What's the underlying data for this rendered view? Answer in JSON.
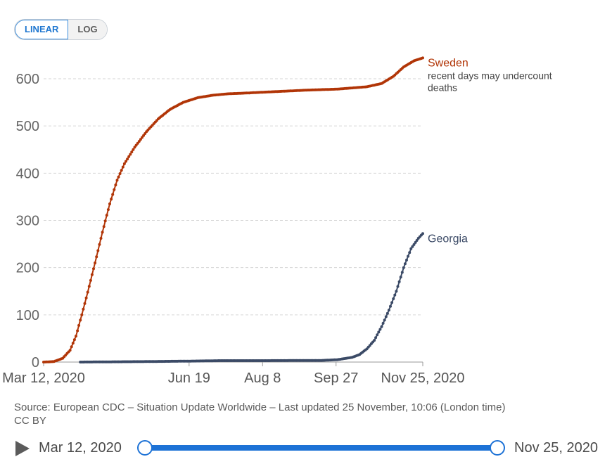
{
  "controls": {
    "linear_label": "LINEAR",
    "log_label": "LOG"
  },
  "chart_data": {
    "type": "line",
    "title": "",
    "xlabel": "",
    "ylabel": "",
    "ylim": [
      0,
      650
    ],
    "yticks": [
      0,
      100,
      200,
      300,
      400,
      500,
      600
    ],
    "grid": true,
    "x_start_day": 0,
    "x_end_day": 258,
    "xtick_labels": [
      {
        "day": 0,
        "label": "Mar 12, 2020"
      },
      {
        "day": 99,
        "label": "Jun 19"
      },
      {
        "day": 149,
        "label": "Aug 8"
      },
      {
        "day": 199,
        "label": "Sep 27"
      },
      {
        "day": 258,
        "label": "Nov 25, 2020"
      }
    ],
    "series": [
      {
        "name": "Sweden",
        "color": "#b13507",
        "label": "Sweden",
        "note": "recent days may undercount deaths",
        "points": [
          [
            0,
            0
          ],
          [
            7,
            1
          ],
          [
            13,
            8
          ],
          [
            18,
            25
          ],
          [
            22,
            55
          ],
          [
            26,
            100
          ],
          [
            30,
            148
          ],
          [
            35,
            210
          ],
          [
            40,
            275
          ],
          [
            45,
            335
          ],
          [
            50,
            385
          ],
          [
            55,
            420
          ],
          [
            62,
            455
          ],
          [
            70,
            488
          ],
          [
            78,
            515
          ],
          [
            86,
            535
          ],
          [
            95,
            550
          ],
          [
            105,
            560
          ],
          [
            115,
            565
          ],
          [
            125,
            568
          ],
          [
            140,
            570
          ],
          [
            160,
            573
          ],
          [
            180,
            576
          ],
          [
            200,
            578
          ],
          [
            220,
            583
          ],
          [
            230,
            590
          ],
          [
            238,
            605
          ],
          [
            245,
            625
          ],
          [
            252,
            638
          ],
          [
            258,
            644
          ]
        ]
      },
      {
        "name": "Georgia",
        "color": "#3b4a66",
        "label": "Georgia",
        "points": [
          [
            25,
            0
          ],
          [
            45,
            0.5
          ],
          [
            70,
            1
          ],
          [
            100,
            2
          ],
          [
            120,
            3
          ],
          [
            150,
            3
          ],
          [
            190,
            3.5
          ],
          [
            200,
            5
          ],
          [
            210,
            10
          ],
          [
            215,
            16
          ],
          [
            220,
            28
          ],
          [
            225,
            46
          ],
          [
            230,
            75
          ],
          [
            235,
            110
          ],
          [
            240,
            150
          ],
          [
            245,
            200
          ],
          [
            250,
            240
          ],
          [
            255,
            262
          ],
          [
            258,
            272
          ]
        ]
      }
    ]
  },
  "source": {
    "line1": "Source: European CDC – Situation Update Worldwide – Last updated 25 November, 10:06 (London time)",
    "line2": "CC BY"
  },
  "timeline": {
    "start_label": "Mar 12, 2020",
    "end_label": "Nov 25, 2020"
  }
}
